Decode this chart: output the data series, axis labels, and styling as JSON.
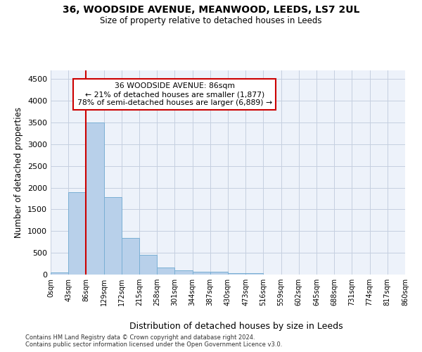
{
  "title_main": "36, WOODSIDE AVENUE, MEANWOOD, LEEDS, LS7 2UL",
  "title_sub": "Size of property relative to detached houses in Leeds",
  "xlabel": "Distribution of detached houses by size in Leeds",
  "ylabel": "Number of detached properties",
  "bar_color": "#b8d0ea",
  "bar_edge_color": "#7aafd4",
  "vline_color": "#cc0000",
  "vline_x": 86,
  "annotation_line1": "36 WOODSIDE AVENUE: 86sqm",
  "annotation_line2": "← 21% of detached houses are smaller (1,877)",
  "annotation_line3": "78% of semi-detached houses are larger (6,889) →",
  "annotation_box_color": "#cc0000",
  "footer_line1": "Contains HM Land Registry data © Crown copyright and database right 2024.",
  "footer_line2": "Contains public sector information licensed under the Open Government Licence v3.0.",
  "bin_edges": [
    0,
    43,
    86,
    129,
    172,
    215,
    258,
    301,
    344,
    387,
    430,
    473,
    516,
    559,
    602,
    645,
    688,
    731,
    774,
    817,
    860
  ],
  "bar_heights": [
    50,
    1900,
    3500,
    1780,
    840,
    460,
    160,
    100,
    70,
    60,
    40,
    35,
    5,
    5,
    5,
    5,
    5,
    5,
    5,
    5
  ],
  "ylim": [
    0,
    4700
  ],
  "yticks": [
    0,
    500,
    1000,
    1500,
    2000,
    2500,
    3000,
    3500,
    4000,
    4500
  ],
  "background_color": "#edf2fa",
  "grid_color": "#c5cfe0"
}
